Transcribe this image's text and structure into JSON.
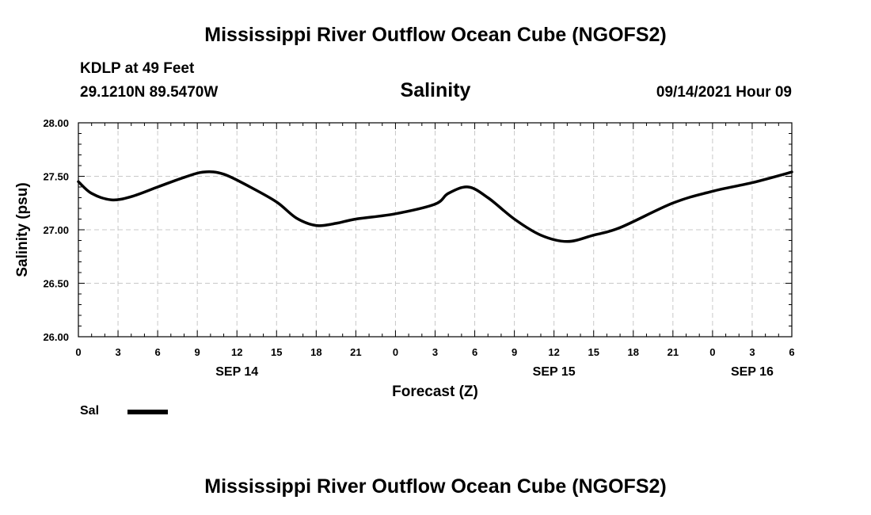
{
  "header": {
    "title": "Mississippi River Outflow Ocean Cube (NGOFS2)",
    "station": "KDLP at 49 Feet",
    "coords": "29.1210N  89.5470W",
    "variable": "Salinity",
    "valid_time": "09/14/2021 Hour 09"
  },
  "legend": {
    "label": "Sal",
    "color": "#000000"
  },
  "footer": {
    "title": "Mississippi River Outflow Ocean Cube (NGOFS2)"
  },
  "chart_data": {
    "type": "line",
    "title": "Salinity",
    "xlabel": "Forecast (Z)",
    "ylabel": "Salinity (psu)",
    "xlim": [
      0,
      54
    ],
    "ylim": [
      26.0,
      28.0
    ],
    "grid": true,
    "legend_position": "bottom-left",
    "x_ticks": [
      0,
      3,
      6,
      9,
      12,
      15,
      18,
      21,
      24,
      27,
      30,
      33,
      36,
      39,
      42,
      45,
      48,
      51,
      54
    ],
    "x_tick_labels": [
      "0",
      "3",
      "6",
      "9",
      "12",
      "15",
      "18",
      "21",
      "0",
      "3",
      "6",
      "9",
      "12",
      "15",
      "18",
      "21",
      "0",
      "3",
      "6"
    ],
    "y_ticks": [
      26.0,
      26.5,
      27.0,
      27.5,
      28.0
    ],
    "y_tick_labels": [
      "26.00",
      "26.50",
      "27.00",
      "27.50",
      "28.00"
    ],
    "day_labels": [
      {
        "x": 12,
        "label": "SEP 14"
      },
      {
        "x": 36,
        "label": "SEP 15"
      },
      {
        "x": 51,
        "label": "SEP 16"
      }
    ],
    "series": [
      {
        "name": "Sal",
        "color": "#000000",
        "x": [
          0,
          1,
          2.5,
          4,
          6,
          8,
          9.5,
          11,
          13,
          15,
          16.5,
          18,
          19.5,
          21,
          24,
          27,
          28,
          29.5,
          31,
          33,
          35,
          37,
          39,
          41,
          45,
          48,
          51,
          54
        ],
        "y": [
          27.45,
          27.34,
          27.28,
          27.31,
          27.4,
          27.49,
          27.54,
          27.52,
          27.4,
          27.26,
          27.11,
          27.04,
          27.06,
          27.1,
          27.15,
          27.24,
          27.34,
          27.4,
          27.3,
          27.1,
          26.95,
          26.89,
          26.95,
          27.02,
          27.25,
          27.36,
          27.44,
          27.54
        ]
      }
    ]
  }
}
